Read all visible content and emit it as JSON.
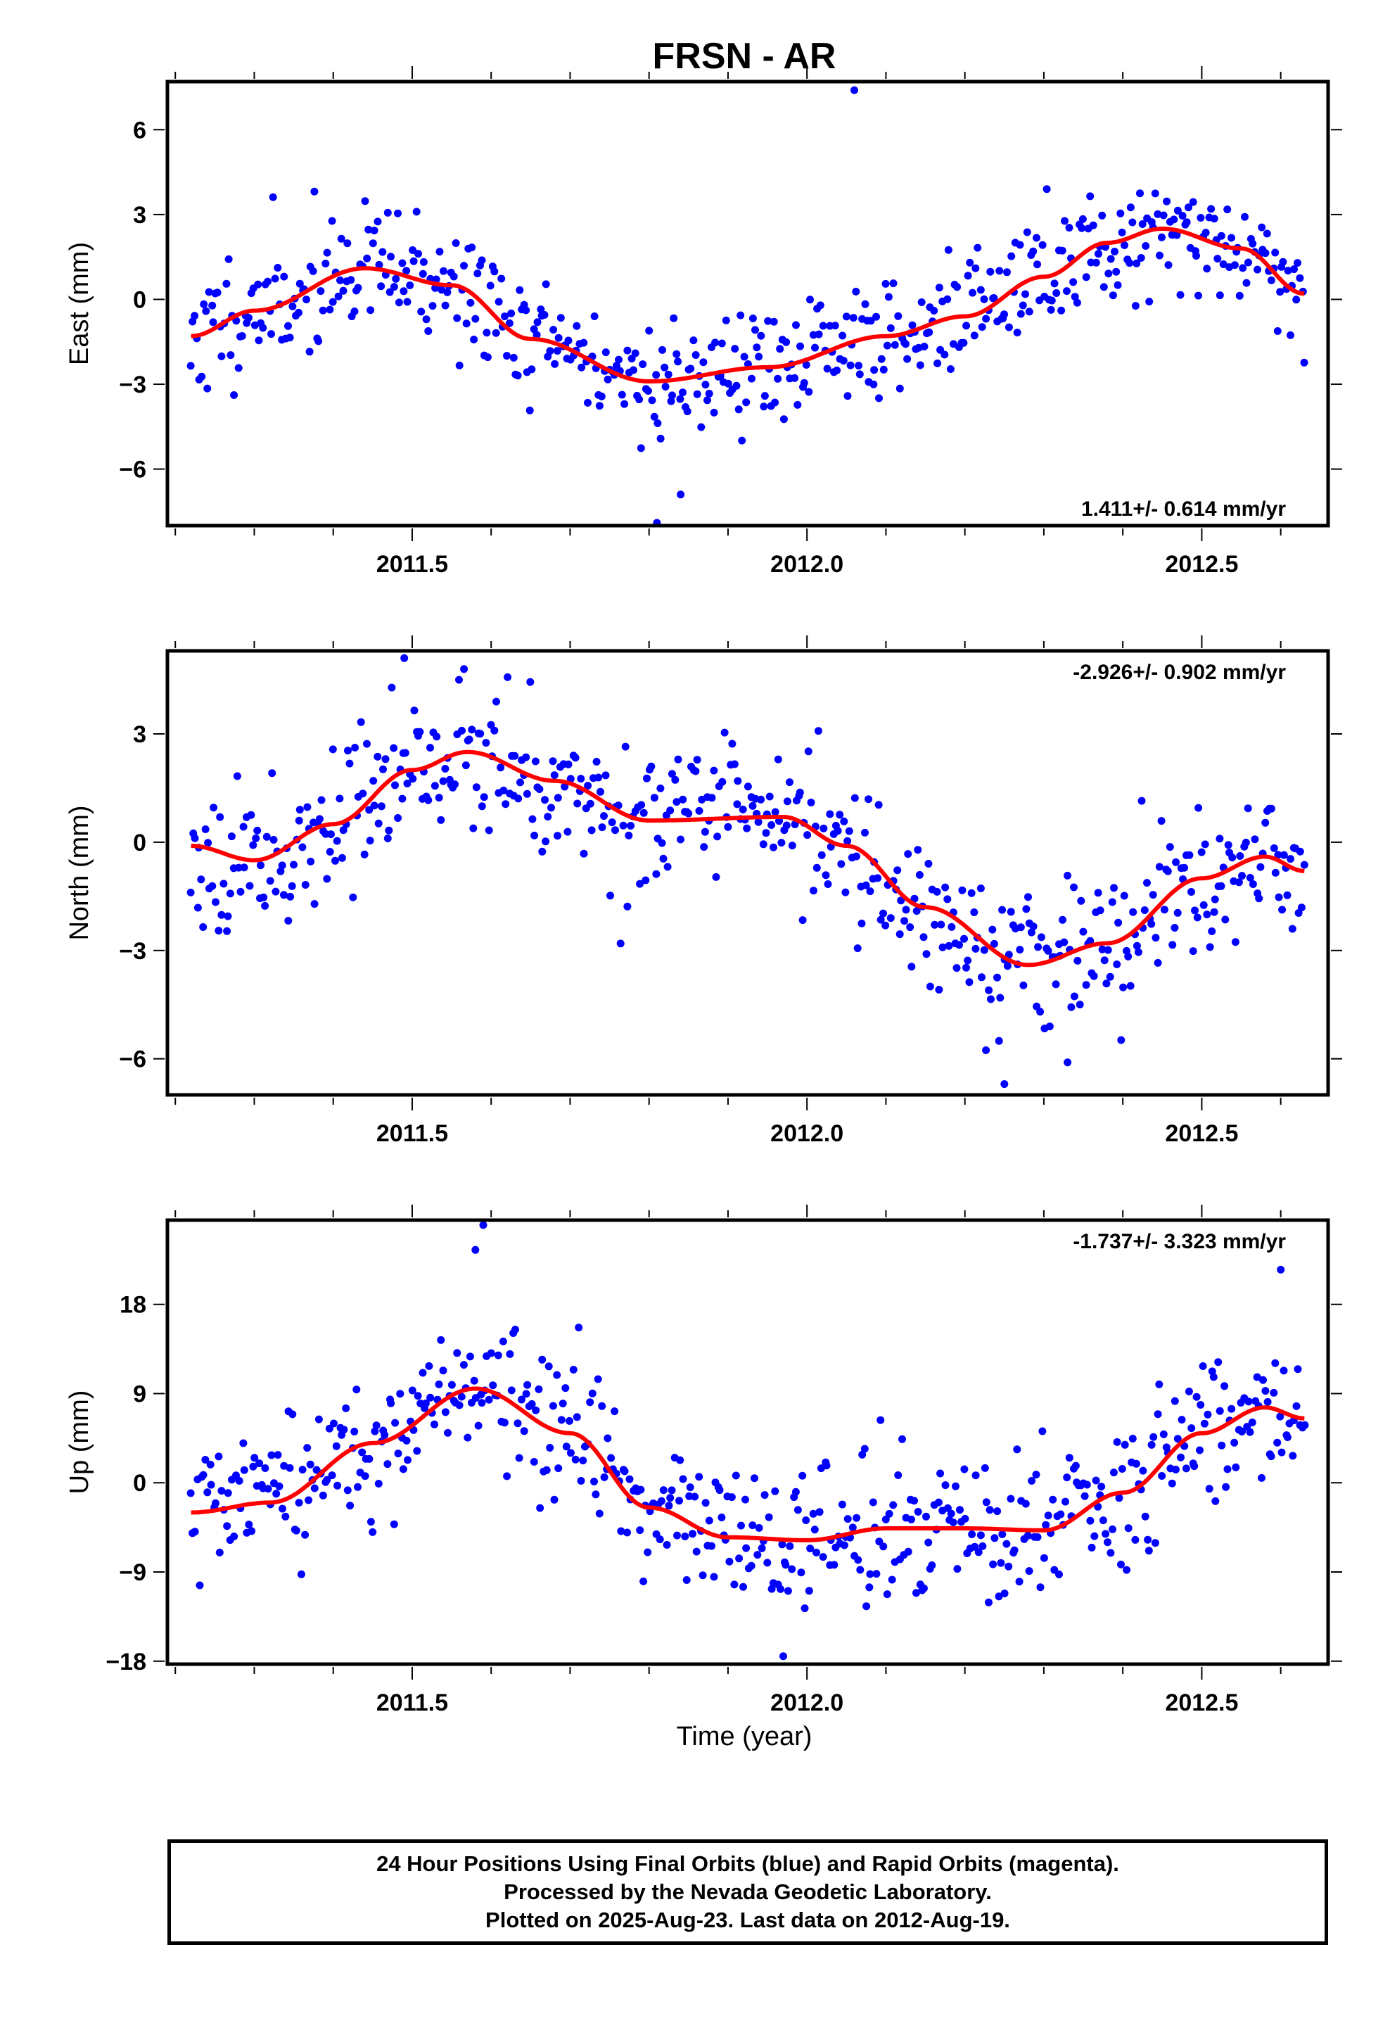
{
  "title": "FRSN - AR",
  "xlabel": "Time (year)",
  "footer": {
    "line1": "24 Hour Positions Using Final Orbits (blue) and Rapid Orbits (magenta).",
    "line2": "Processed by the Nevada Geodetic Laboratory.",
    "line3": "Plotted on 2025-Aug-23. Last data on 2012-Aug-19."
  },
  "colors": {
    "points": "#0000ff",
    "fit": "#ff0000",
    "frame": "#000000"
  },
  "chart_data": [
    {
      "type": "scatter",
      "ylabel": "East (mm)",
      "rate_label": "1.411+/- 0.614 mm/yr",
      "rate_position": "bottom-right",
      "xlim": [
        2011.19,
        2012.66
      ],
      "ylim": [
        -8,
        7.7
      ],
      "x_ticks": [
        2011.5,
        2012.0,
        2012.5
      ],
      "x_tick_labels": [
        "2011.5",
        "2012.0",
        "2012.5"
      ],
      "y_ticks": [
        -6,
        -3,
        0,
        3,
        6
      ],
      "y_tick_labels": [
        "−6",
        "−3",
        "0",
        "3",
        "6"
      ],
      "grid": false,
      "fit_knots": {
        "x": [
          2011.22,
          2011.3,
          2011.44,
          2011.55,
          2011.65,
          2011.8,
          2011.95,
          2012.1,
          2012.2,
          2012.3,
          2012.38,
          2012.45,
          2012.55,
          2012.63
        ],
        "y": [
          -1.3,
          -0.4,
          1.1,
          0.5,
          -1.4,
          -2.9,
          -2.4,
          -1.3,
          -0.6,
          0.8,
          2.0,
          2.5,
          1.8,
          0.2
        ]
      },
      "scatter": {
        "seed": 11,
        "noise": 1.1,
        "outliers": [
          [
            2012.06,
            7.4
          ],
          [
            2011.81,
            -7.9
          ],
          [
            2011.84,
            -6.9
          ]
        ]
      }
    },
    {
      "type": "scatter",
      "ylabel": "North (mm)",
      "rate_label": "-2.926+/- 0.902 mm/yr",
      "rate_position": "top-right",
      "xlim": [
        2011.19,
        2012.66
      ],
      "ylim": [
        -7,
        5.3
      ],
      "x_ticks": [
        2011.5,
        2012.0,
        2012.5
      ],
      "x_tick_labels": [
        "2011.5",
        "2012.0",
        "2012.5"
      ],
      "y_ticks": [
        -6,
        -3,
        0,
        3
      ],
      "y_tick_labels": [
        "−6",
        "−3",
        "0",
        "3"
      ],
      "grid": false,
      "fit_knots": {
        "x": [
          2011.22,
          2011.3,
          2011.4,
          2011.5,
          2011.57,
          2011.68,
          2011.8,
          2011.97,
          2012.05,
          2012.15,
          2012.28,
          2012.38,
          2012.5,
          2012.58,
          2012.63
        ],
        "y": [
          -0.1,
          -0.5,
          0.5,
          2.0,
          2.5,
          1.7,
          0.6,
          0.7,
          -0.1,
          -1.8,
          -3.4,
          -2.8,
          -1.0,
          -0.4,
          -0.8
        ]
      },
      "scatter": {
        "seed": 23,
        "noise": 1.0,
        "outliers": [
          [
            2011.49,
            5.1
          ],
          [
            2012.25,
            -6.7
          ],
          [
            2012.33,
            -6.1
          ]
        ]
      }
    },
    {
      "type": "scatter",
      "ylabel": "Up (mm)",
      "rate_label": "-1.737+/- 3.323 mm/yr",
      "rate_position": "top-right",
      "xlim": [
        2011.19,
        2012.66
      ],
      "ylim": [
        -18.3,
        26.5
      ],
      "x_ticks": [
        2011.5,
        2012.0,
        2012.5
      ],
      "x_tick_labels": [
        "2011.5",
        "2012.0",
        "2012.5"
      ],
      "y_ticks": [
        -18,
        -9,
        0,
        9,
        18
      ],
      "y_tick_labels": [
        "−18",
        "−9",
        "0",
        "9",
        "18"
      ],
      "grid": false,
      "fit_knots": {
        "x": [
          2011.22,
          2011.32,
          2011.45,
          2011.58,
          2011.7,
          2011.8,
          2011.9,
          2012.0,
          2012.1,
          2012.2,
          2012.3,
          2012.4,
          2012.5,
          2012.58,
          2012.63
        ],
        "y": [
          -3.0,
          -2.0,
          4.0,
          9.5,
          5.0,
          -2.5,
          -5.5,
          -5.8,
          -4.6,
          -4.6,
          -4.8,
          -1.0,
          5.0,
          7.6,
          6.5
        ]
      },
      "scatter": {
        "seed": 37,
        "noise": 3.6,
        "outliers": [
          [
            2011.59,
            26.0
          ],
          [
            2011.58,
            23.5
          ],
          [
            2012.6,
            21.5
          ],
          [
            2011.97,
            -17.5
          ]
        ]
      }
    }
  ]
}
